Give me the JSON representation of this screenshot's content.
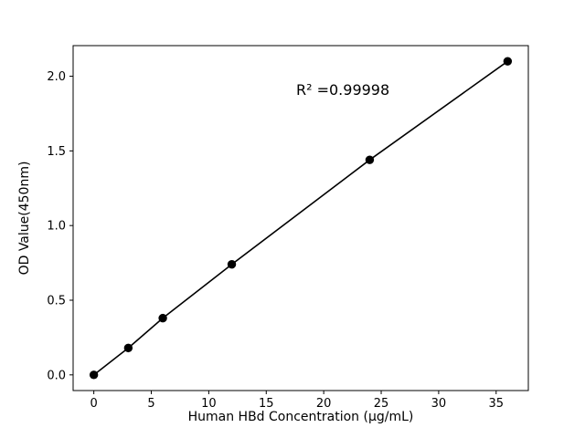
{
  "figure": {
    "background": "#ffffff"
  },
  "chart_data": {
    "type": "scatter",
    "title": "",
    "xlabel": "Human HBd Concentration (μg/mL)",
    "ylabel": "OD Value(450nm)",
    "annotation": {
      "text": "R² =0.99998",
      "x": 17.6,
      "y": 1.87
    },
    "x": [
      0,
      3,
      6,
      12,
      24,
      36
    ],
    "y": [
      0.0,
      0.18,
      0.38,
      0.74,
      1.44,
      2.1
    ],
    "series_name": "standard-curve",
    "xticks": {
      "values": [
        0,
        5,
        10,
        15,
        20,
        25,
        30,
        35
      ],
      "labels": [
        "0",
        "5",
        "10",
        "15",
        "20",
        "25",
        "30",
        "35"
      ]
    },
    "yticks": {
      "values": [
        0.0,
        0.5,
        1.0,
        1.5,
        2.0
      ],
      "labels": [
        "0.0",
        "0.5",
        "1.0",
        "1.5",
        "2.0"
      ]
    },
    "xlim": [
      -1.8,
      37.8
    ],
    "ylim": [
      -0.105,
      2.205
    ],
    "grid": false,
    "legend": "none",
    "line_color": "#000000",
    "marker_color": "#000000",
    "axis_color": "#000000",
    "marker_radius": 4.7
  }
}
